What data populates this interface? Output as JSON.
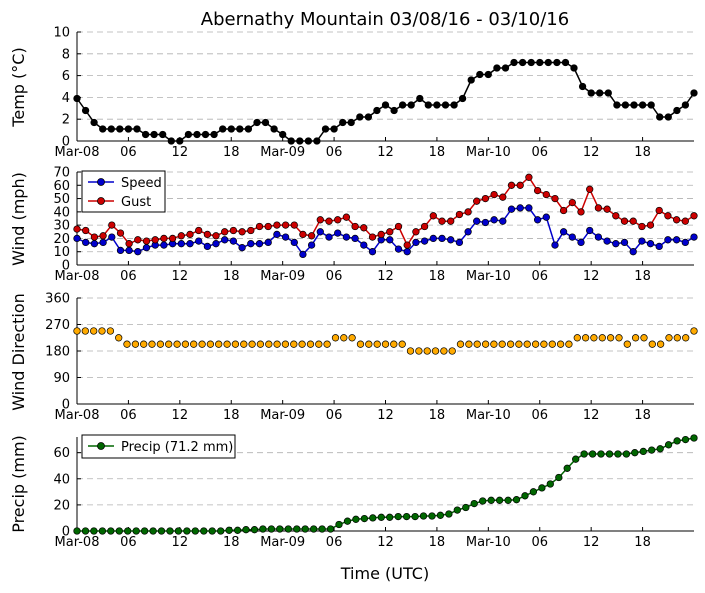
{
  "chart_data": {
    "title": "Abernathy Mountain 03/08/16 - 03/10/16",
    "xlabel": "Time (UTC)",
    "type": "multi-panel",
    "x_tick_labels": [
      "Mar-08",
      "06",
      "12",
      "18",
      "Mar-09",
      "06",
      "12",
      "18",
      "Mar-10",
      "06",
      "12",
      "18"
    ],
    "x_hours_range": [
      0,
      72
    ],
    "panels": [
      {
        "type": "line",
        "ylabel": "Temp (°C)",
        "ylim": [
          0,
          10
        ],
        "yticks": [
          0,
          2,
          4,
          6,
          8,
          10
        ],
        "series": [
          {
            "name": "Temp",
            "color": "#000000",
            "values": [
              3.9,
              2.8,
              1.7,
              1.1,
              1.1,
              1.1,
              1.1,
              1.1,
              0.6,
              0.6,
              0.6,
              0,
              0,
              0.6,
              0.6,
              0.6,
              0.6,
              1.1,
              1.1,
              1.1,
              1.1,
              1.7,
              1.7,
              1.1,
              0.6,
              0,
              0,
              0,
              0,
              1.1,
              1.1,
              1.7,
              1.7,
              2.2,
              2.2,
              2.8,
              3.3,
              2.8,
              3.3,
              3.3,
              3.9,
              3.3,
              3.3,
              3.3,
              3.3,
              3.9,
              5.6,
              6.1,
              6.1,
              6.7,
              6.7,
              7.2,
              7.2,
              7.2,
              7.2,
              7.2,
              7.2,
              7.2,
              6.7,
              5.0,
              4.4,
              4.4,
              4.4,
              3.3,
              3.3,
              3.3,
              3.3,
              3.3,
              2.2,
              2.2,
              2.8,
              3.3,
              4.4
            ]
          }
        ]
      },
      {
        "type": "line",
        "ylabel": "Wind (mph)",
        "ylim": [
          0,
          70
        ],
        "yticks": [
          0,
          10,
          20,
          30,
          40,
          50,
          60,
          70
        ],
        "legend": [
          "Speed",
          "Gust"
        ],
        "legend_position": "top-left",
        "series": [
          {
            "name": "Speed",
            "color": "#0000cc",
            "values": [
              20,
              17,
              16,
              17,
              21,
              11,
              11,
              10,
              13,
              15,
              15,
              16,
              16,
              16,
              18,
              14,
              16,
              19,
              18,
              13,
              16,
              16,
              17,
              23,
              21,
              17,
              8,
              15,
              25,
              21,
              24,
              21,
              20,
              15,
              10,
              19,
              19,
              12,
              10,
              17,
              18,
              20,
              20,
              19,
              17,
              25,
              33,
              32,
              34,
              33,
              42,
              43,
              43,
              34,
              36,
              15,
              25,
              21,
              17,
              26,
              21,
              18,
              16,
              17,
              10,
              18,
              16,
              14,
              19,
              19,
              17,
              21
            ]
          },
          {
            "name": "Gust",
            "color": "#cc0000",
            "values": [
              27,
              26,
              21,
              22,
              30,
              24,
              16,
              19,
              18,
              19,
              20,
              20,
              22,
              23,
              26,
              23,
              22,
              25,
              26,
              25,
              26,
              29,
              29,
              30,
              30,
              30,
              23,
              22,
              34,
              33,
              34,
              36,
              29,
              28,
              21,
              23,
              25,
              29,
              15,
              25,
              29,
              37,
              33,
              33,
              38,
              40,
              48,
              50,
              53,
              51,
              60,
              60,
              66,
              56,
              53,
              50,
              41,
              47,
              40,
              57,
              43,
              42,
              37,
              33,
              33,
              29,
              30,
              41,
              37,
              34,
              33,
              37
            ]
          }
        ]
      },
      {
        "type": "scatter",
        "ylabel": "Wind Direction",
        "ylim": [
          0,
          360
        ],
        "yticks": [
          0,
          90,
          180,
          270,
          360
        ],
        "series": [
          {
            "name": "Wind Direction",
            "color": "#ffaa00",
            "values": [
              248,
              248,
              248,
              248,
              248,
              225,
              203,
              203,
              203,
              203,
              203,
              203,
              203,
              203,
              203,
              203,
              203,
              203,
              203,
              203,
              203,
              203,
              203,
              203,
              203,
              203,
              203,
              203,
              203,
              203,
              203,
              225,
              225,
              225,
              203,
              203,
              203,
              203,
              203,
              203,
              180,
              180,
              180,
              180,
              180,
              180,
              203,
              203,
              203,
              203,
              203,
              203,
              203,
              203,
              203,
              203,
              203,
              203,
              203,
              203,
              225,
              225,
              225,
              225,
              225,
              225,
              203,
              225,
              225,
              203,
              203,
              225,
              225,
              225,
              248
            ]
          }
        ]
      },
      {
        "type": "line",
        "ylabel": "Precip (mm)",
        "ylim": [
          0,
          72
        ],
        "yticks": [
          0,
          20,
          40,
          60
        ],
        "legend": [
          "Precip (71.2 mm)"
        ],
        "legend_position": "top-left",
        "series": [
          {
            "name": "Precip (71.2 mm)",
            "color": "#006600",
            "values": [
              0,
              0,
              0,
              0,
              0,
              0,
              0,
              0,
              0,
              0,
              0,
              0,
              0,
              0,
              0,
              0,
              0,
              0,
              0.5,
              0.5,
              1,
              1,
              1.5,
              1.5,
              1.5,
              1.5,
              1.5,
              1.5,
              1.5,
              1.5,
              1.5,
              5,
              7.5,
              9,
              9.5,
              10,
              10.5,
              10.5,
              11,
              11,
              11,
              11.5,
              11.5,
              12,
              13,
              16,
              18,
              21,
              23,
              23.5,
              23.5,
              23.5,
              24,
              27,
              30,
              33,
              36,
              41,
              48,
              55,
              59,
              59,
              59,
              59,
              59,
              59,
              60,
              61,
              62,
              63,
              66,
              69,
              70,
              71.2
            ]
          }
        ]
      }
    ]
  }
}
